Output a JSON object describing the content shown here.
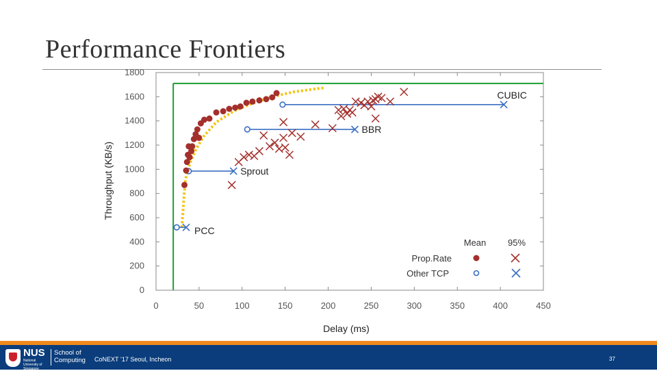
{
  "slide": {
    "title": "Performance Frontiers",
    "footer_text": "CoNEXT ’17 Seoul, Incheon",
    "page_number": "37",
    "logo": {
      "university": "NUS",
      "university_full": "National University of Singapore",
      "school": "School of Computing"
    },
    "colors": {
      "accent_orange": "#f08a1c",
      "footer_blue": "#0b3d7c",
      "proprate_red": "#a3302c",
      "other_tcp_blue": "#3a6ec2",
      "frontier_yellow": "#f2c40f",
      "bound_green": "#1a9e2e"
    }
  },
  "chart_data": {
    "type": "scatter",
    "xlabel": "Delay (ms)",
    "ylabel": "Throughput (KB/s)",
    "xlim": [
      0,
      450
    ],
    "ylim": [
      0,
      1800
    ],
    "xticks": [
      "0",
      "50",
      "100",
      "150",
      "200",
      "250",
      "300",
      "350",
      "400",
      "450"
    ],
    "yticks": [
      "0",
      "200",
      "400",
      "600",
      "800",
      "1000",
      "1200",
      "1400",
      "1600",
      "1800"
    ],
    "reference_lines": {
      "vertical_x": 20,
      "horizontal_y": 1710
    },
    "legend": {
      "position": "bottom-right",
      "col_mean": "Mean",
      "col_95": "95%",
      "row_proprate": "Prop.Rate",
      "row_other": "Other TCP"
    },
    "frontier": {
      "name": "Prop.Rate frontier",
      "points": [
        [
          30,
          520
        ],
        [
          31,
          620
        ],
        [
          32,
          720
        ],
        [
          33,
          820
        ],
        [
          34,
          900
        ],
        [
          36,
          980
        ],
        [
          40,
          1060
        ],
        [
          46,
          1160
        ],
        [
          55,
          1270
        ],
        [
          70,
          1390
        ],
        [
          90,
          1480
        ],
        [
          110,
          1540
        ],
        [
          135,
          1600
        ],
        [
          160,
          1640
        ],
        [
          185,
          1665
        ],
        [
          197,
          1675
        ]
      ]
    },
    "tcp_flows": [
      {
        "name": "CUBIC",
        "mean": [
          147,
          1535
        ],
        "p95": [
          404,
          1535
        ]
      },
      {
        "name": "BBR",
        "mean": [
          106,
          1330
        ],
        "p95": [
          231,
          1330
        ]
      },
      {
        "name": "Sprout",
        "mean": [
          38,
          985
        ],
        "p95": [
          90,
          985
        ]
      },
      {
        "name": "PCC",
        "mean": [
          24,
          520
        ],
        "p95": [
          35,
          520
        ]
      }
    ],
    "proprate_mean": [
      [
        33,
        870
      ],
      [
        35,
        990
      ],
      [
        36,
        1060
      ],
      [
        37,
        1120
      ],
      [
        38,
        1190
      ],
      [
        39,
        1100
      ],
      [
        41,
        1150
      ],
      [
        42,
        1190
      ],
      [
        44,
        1250
      ],
      [
        46,
        1290
      ],
      [
        48,
        1330
      ],
      [
        50,
        1260
      ],
      [
        52,
        1380
      ],
      [
        56,
        1410
      ],
      [
        62,
        1420
      ],
      [
        70,
        1470
      ],
      [
        78,
        1480
      ],
      [
        85,
        1500
      ],
      [
        92,
        1510
      ],
      [
        98,
        1520
      ],
      [
        105,
        1550
      ],
      [
        112,
        1560
      ],
      [
        120,
        1570
      ],
      [
        128,
        1580
      ],
      [
        135,
        1595
      ],
      [
        140,
        1630
      ]
    ],
    "proprate_95": [
      [
        88,
        870
      ],
      [
        96,
        1060
      ],
      [
        102,
        1100
      ],
      [
        108,
        1120
      ],
      [
        114,
        1110
      ],
      [
        120,
        1150
      ],
      [
        125,
        1280
      ],
      [
        132,
        1190
      ],
      [
        138,
        1220
      ],
      [
        143,
        1170
      ],
      [
        148,
        1260
      ],
      [
        150,
        1180
      ],
      [
        155,
        1120
      ],
      [
        148,
        1390
      ],
      [
        158,
        1300
      ],
      [
        168,
        1270
      ],
      [
        185,
        1370
      ],
      [
        205,
        1340
      ],
      [
        212,
        1490
      ],
      [
        215,
        1440
      ],
      [
        218,
        1500
      ],
      [
        222,
        1460
      ],
      [
        225,
        1490
      ],
      [
        228,
        1470
      ],
      [
        232,
        1560
      ],
      [
        238,
        1550
      ],
      [
        242,
        1530
      ],
      [
        246,
        1560
      ],
      [
        250,
        1520
      ],
      [
        252,
        1570
      ],
      [
        255,
        1580
      ],
      [
        258,
        1600
      ],
      [
        262,
        1590
      ],
      [
        272,
        1560
      ],
      [
        288,
        1640
      ],
      [
        255,
        1420
      ]
    ]
  }
}
